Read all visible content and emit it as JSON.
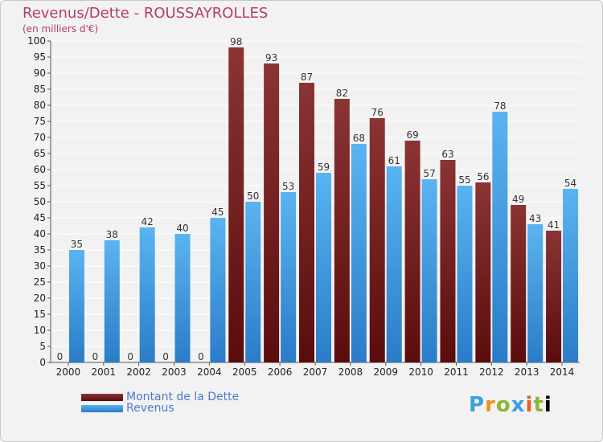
{
  "header": {
    "title": "Revenus/Dette - ROUSSAYROLLES",
    "subtitle": "(en milliers d'€)"
  },
  "colors": {
    "dette": "#7a2424",
    "revenus": "#3d9ee0",
    "title": "#b43c6c",
    "legend_text": "#4a7ad0"
  },
  "legend": {
    "dette_label": "Montant de la Dette",
    "revenus_label": "Revenus"
  },
  "logo": [
    "P",
    "r",
    "o",
    "x",
    "i",
    "t",
    "i"
  ],
  "chart_data": {
    "type": "bar",
    "title": "Revenus/Dette - ROUSSAYROLLES",
    "ylabel": "(en milliers d'€)",
    "xlabel": "",
    "ylim": [
      0,
      100
    ],
    "yticks": [
      0,
      5,
      10,
      15,
      20,
      25,
      30,
      35,
      40,
      45,
      50,
      55,
      60,
      65,
      70,
      75,
      80,
      85,
      90,
      95,
      100
    ],
    "grid": true,
    "legend_position": "bottom-left",
    "categories": [
      "2000",
      "2001",
      "2002",
      "2003",
      "2004",
      "2005",
      "2006",
      "2007",
      "2008",
      "2009",
      "2010",
      "2011",
      "2012",
      "2013",
      "2014"
    ],
    "series": [
      {
        "name": "Montant de la Dette",
        "values": [
          0,
          0,
          0,
          0,
          0,
          98,
          93,
          87,
          82,
          76,
          69,
          63,
          56,
          49,
          41
        ]
      },
      {
        "name": "Revenus",
        "values": [
          35,
          38,
          42,
          40,
          45,
          50,
          53,
          59,
          68,
          61,
          57,
          55,
          78,
          43,
          54
        ]
      }
    ]
  }
}
